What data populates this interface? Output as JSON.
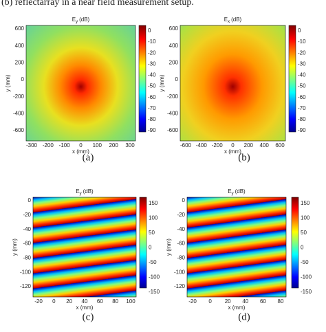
{
  "caption": "(b) reflectarray in a near field measurement setup.",
  "panels": [
    {
      "label": "(a)",
      "title": {
        "symbol": "E",
        "subscript": "y",
        "unit": "(dB)"
      },
      "xlabel": "x (mm)",
      "ylabel": "y (mm)",
      "xticks": [
        -300,
        -200,
        -100,
        0,
        100,
        200,
        300
      ],
      "yticks": [
        600,
        400,
        200,
        0,
        -200,
        -400,
        -600
      ],
      "colorbar_ticks": [
        0,
        -10,
        -20,
        -30,
        -40,
        -50,
        -60,
        -70,
        -80,
        -90
      ]
    },
    {
      "label": "(b)",
      "title": {
        "symbol": "E",
        "subscript": "x",
        "unit": "(dB)"
      },
      "xlabel": "x (mm)",
      "ylabel": "y (mm)",
      "xticks": [
        -600,
        -400,
        -200,
        0,
        200,
        400,
        600
      ],
      "yticks": [
        600,
        400,
        200,
        0,
        -200,
        -400,
        -600
      ],
      "colorbar_ticks": [
        0,
        -10,
        -20,
        -30,
        -40,
        -50,
        -60,
        -70,
        -80,
        -90
      ]
    },
    {
      "label": "(c)",
      "title": {
        "symbol": "E",
        "subscript": "y",
        "unit": "(dB)"
      },
      "xlabel": "x (mm)",
      "ylabel": "y (mm)",
      "xticks": [
        -20,
        0,
        20,
        40,
        60,
        80,
        100
      ],
      "yticks": [
        0,
        -20,
        -40,
        -60,
        -80,
        -100,
        -120
      ],
      "colorbar_ticks": [
        150,
        100,
        50,
        0,
        -50,
        -100,
        -150
      ]
    },
    {
      "label": "(d)",
      "title": {
        "symbol": "E",
        "subscript": "y",
        "unit": "(dB)"
      },
      "xlabel": "x (mm)",
      "ylabel": "y (mm)",
      "xticks": [
        -20,
        0,
        20,
        40,
        60,
        80
      ],
      "yticks": [
        0,
        -20,
        -40,
        -60,
        -80,
        -100,
        -120
      ],
      "colorbar_ticks": [
        150,
        100,
        50,
        0,
        -50,
        -100,
        -150
      ]
    }
  ]
}
